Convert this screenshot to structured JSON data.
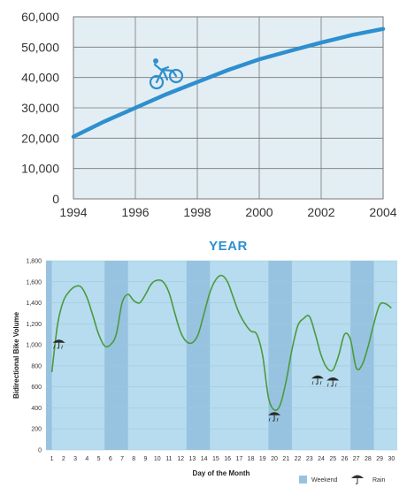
{
  "chart_data": [
    {
      "type": "line",
      "xlabel": "YEAR",
      "ylabel": "",
      "xlim": [
        1994,
        2004
      ],
      "ylim": [
        0,
        60000
      ],
      "x_ticks": [
        "1994",
        "1996",
        "1998",
        "2000",
        "2002",
        "2004"
      ],
      "y_ticks": [
        "0",
        "10,000",
        "20,000",
        "30,000",
        "40,000",
        "50,000",
        "60,000"
      ],
      "series": [
        {
          "x": [
            1994,
            1995,
            1996,
            1997,
            1998,
            1999,
            2000,
            2001,
            2002,
            2003,
            2004
          ],
          "values": [
            20500,
            25500,
            30000,
            34500,
            38500,
            42500,
            46000,
            48800,
            51500,
            54000,
            56000
          ]
        }
      ],
      "icon": "cyclist-icon",
      "colors": {
        "background": "#e3eef4",
        "line": "#2e8fcf",
        "axis": "#777777"
      },
      "grid": true
    },
    {
      "type": "line",
      "xlabel": "Day of the Month",
      "ylabel": "Bidirectional Bike Volume",
      "xlim": [
        0.5,
        30.5
      ],
      "ylim": [
        0,
        1800
      ],
      "x_ticks": [
        "1",
        "2",
        "3",
        "4",
        "5",
        "6",
        "7",
        "8",
        "9",
        "10",
        "11",
        "12",
        "13",
        "14",
        "15",
        "16",
        "17",
        "18",
        "19",
        "20",
        "21",
        "22",
        "23",
        "24",
        "25",
        "26",
        "27",
        "28",
        "29",
        "30"
      ],
      "y_ticks": [
        "0",
        "200",
        "400",
        "600",
        "800",
        "1,000",
        "1,200",
        "1,400",
        "1,600",
        "1,800"
      ],
      "series": [
        {
          "x": [
            1,
            1.5,
            2,
            2.5,
            3,
            3.5,
            4,
            4.5,
            5,
            5.5,
            6,
            6.5,
            7,
            7.5,
            8,
            8.5,
            9,
            9.5,
            10,
            10.5,
            11,
            11.5,
            12,
            12.5,
            13,
            13.5,
            14,
            14.5,
            15,
            15.5,
            16,
            16.5,
            17,
            17.5,
            18,
            18.5,
            19,
            19.5,
            20,
            20.5,
            21,
            21.5,
            22,
            22.5,
            23,
            23.5,
            24,
            24.5,
            25,
            25.5,
            26,
            26.5,
            27,
            27.5,
            28,
            28.5,
            29,
            29.5,
            30
          ],
          "values": [
            740,
            1200,
            1420,
            1510,
            1555,
            1550,
            1450,
            1280,
            1100,
            990,
            1000,
            1100,
            1400,
            1480,
            1420,
            1400,
            1480,
            1580,
            1615,
            1600,
            1500,
            1300,
            1120,
            1030,
            1020,
            1100,
            1300,
            1500,
            1620,
            1660,
            1600,
            1450,
            1300,
            1200,
            1130,
            1100,
            900,
            500,
            380,
            430,
            650,
            950,
            1180,
            1250,
            1270,
            1100,
            900,
            780,
            760,
            900,
            1100,
            1050,
            780,
            810,
            980,
            1200,
            1380,
            1390,
            1350
          ]
        }
      ],
      "weekend_bands": [
        [
          0.5,
          1
        ],
        [
          5.5,
          7.5
        ],
        [
          12.5,
          14.5
        ],
        [
          19.5,
          21.5
        ],
        [
          26.5,
          28.5
        ]
      ],
      "rain_days": [
        {
          "day": 1.6,
          "value": 1020
        },
        {
          "day": 20,
          "value": 330
        },
        {
          "day": 23.7,
          "value": 680
        },
        {
          "day": 25,
          "value": 660
        }
      ],
      "legend": [
        "Weekend",
        "Rain"
      ],
      "legend_position": "bottom-right",
      "colors": {
        "background": "#b7dcef",
        "weekend": "#97c3e0",
        "line": "#4a9a3e"
      },
      "grid": true
    }
  ]
}
